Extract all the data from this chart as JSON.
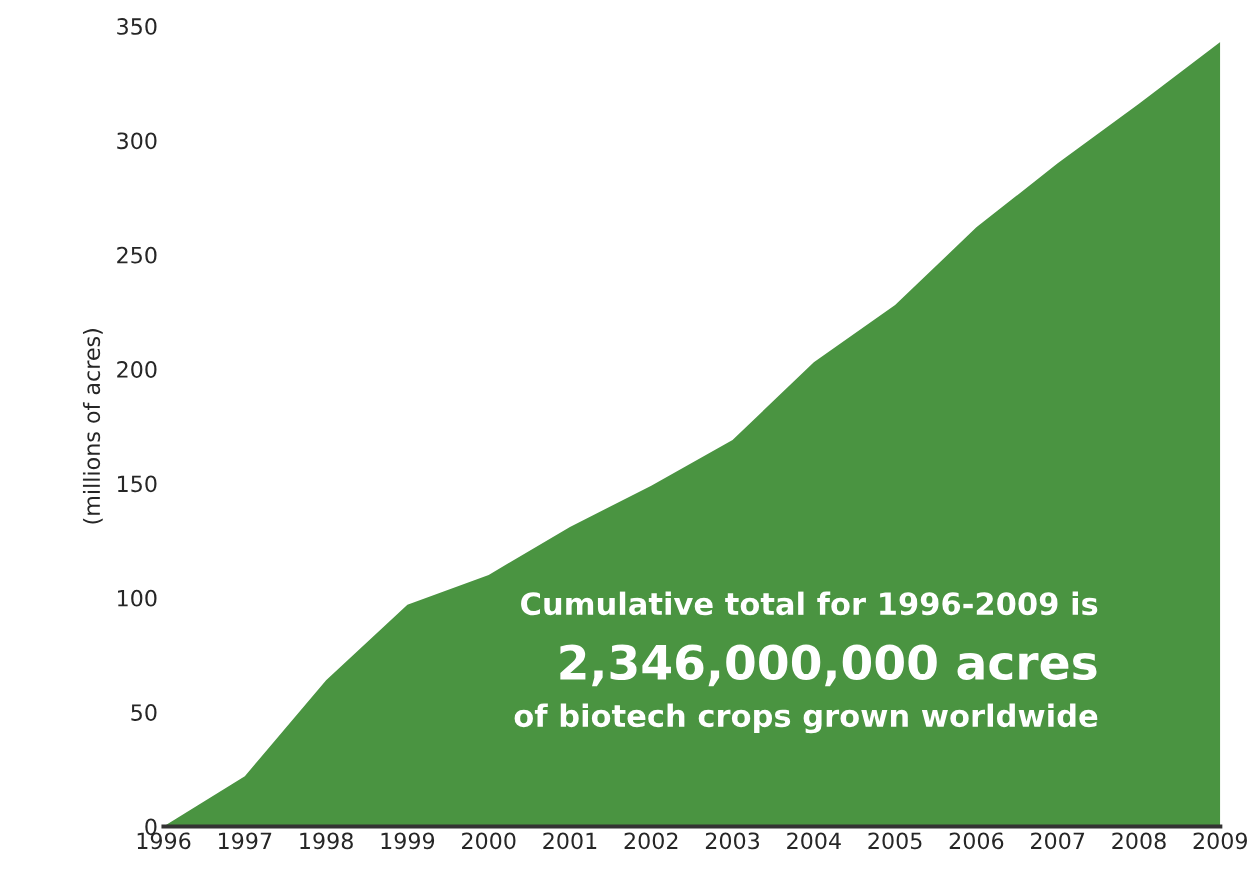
{
  "chart_data": {
    "type": "area",
    "ylabel": "(millions of acres)",
    "categories": [
      "1996",
      "1997",
      "1998",
      "1999",
      "2000",
      "2001",
      "2002",
      "2003",
      "2004",
      "2005",
      "2006",
      "2007",
      "2008",
      "2009"
    ],
    "series": [
      {
        "color": "#4a9441",
        "values": [
          0,
          22,
          64,
          97,
          110,
          131,
          149,
          169,
          203,
          228,
          262,
          290,
          316,
          343
        ]
      }
    ],
    "ylim": [
      0,
      350
    ],
    "yticks": [
      0,
      50,
      100,
      150,
      200,
      250,
      300,
      350
    ],
    "grid": false,
    "legend": false,
    "annotations": [
      "Cumulative total for 1996-2009 is",
      "2,346,000,000 acres",
      "of biotech crops grown worldwide"
    ]
  }
}
